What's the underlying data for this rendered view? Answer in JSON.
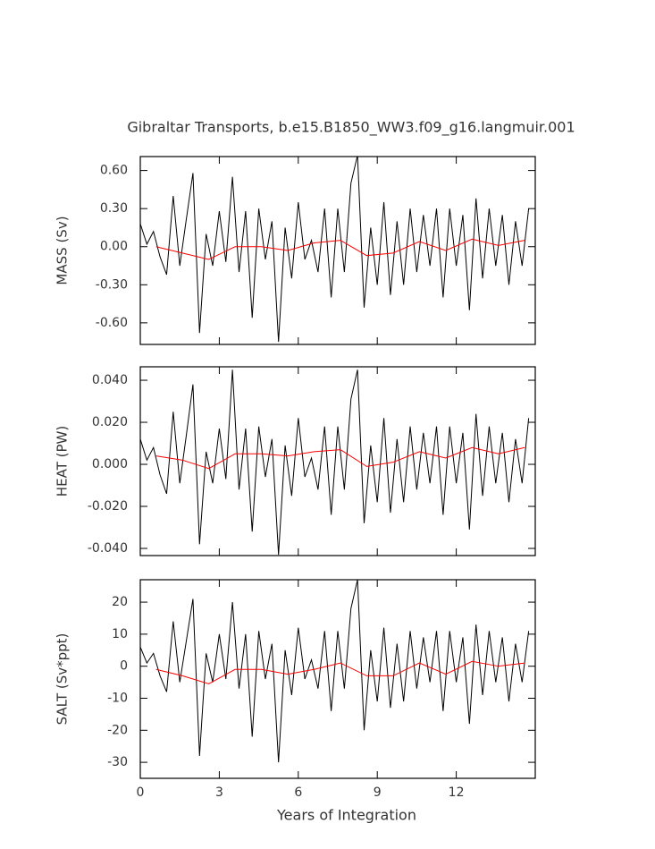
{
  "chart_data": [
    {
      "type": "line",
      "title": "Gibraltar Transports, b.e15.B1850_WW3.f09_g16.langmuir.001",
      "ylabel": "MASS (Sv)",
      "xlim": [
        0,
        15
      ],
      "xticks": [
        0,
        3,
        6,
        9,
        12
      ],
      "ylim": [
        -0.77,
        0.71
      ],
      "yticks": [
        {
          "value": 0.6,
          "label": "0.60"
        },
        {
          "value": 0.3,
          "label": "0.30"
        },
        {
          "value": 0,
          "label": "0.00"
        },
        {
          "value": -0.3,
          "label": "-0.30"
        },
        {
          "value": -0.6,
          "label": "-0.60"
        }
      ],
      "series": [
        {
          "color": "#000000",
          "x": [
            0,
            0.25,
            0.5,
            0.75,
            1,
            1.25,
            1.5,
            1.75,
            2,
            2.25,
            2.5,
            2.75,
            3,
            3.25,
            3.5,
            3.75,
            4,
            4.25,
            4.5,
            4.75,
            5,
            5.25,
            5.5,
            5.75,
            6,
            6.25,
            6.5,
            6.75,
            7,
            7.25,
            7.5,
            7.75,
            8,
            8.25,
            8.5,
            8.75,
            9,
            9.25,
            9.5,
            9.75,
            10,
            10.25,
            10.5,
            10.75,
            11,
            11.25,
            11.5,
            11.75,
            12,
            12.25,
            12.5,
            12.75,
            13,
            13.25,
            13.5,
            13.75,
            14,
            14.25,
            14.5,
            14.75
          ],
          "values": [
            0.18,
            0.02,
            0.12,
            -0.08,
            -0.22,
            0.4,
            -0.15,
            0.22,
            0.58,
            -0.68,
            0.1,
            -0.15,
            0.28,
            -0.12,
            0.55,
            -0.2,
            0.28,
            -0.56,
            0.3,
            -0.1,
            0.2,
            -0.75,
            0.15,
            -0.25,
            0.35,
            -0.1,
            0.05,
            -0.2,
            0.3,
            -0.4,
            0.3,
            -0.2,
            0.5,
            0.72,
            -0.48,
            0.15,
            -0.3,
            0.35,
            -0.38,
            0.2,
            -0.3,
            0.3,
            -0.2,
            0.25,
            -0.15,
            0.3,
            -0.4,
            0.3,
            -0.15,
            0.25,
            -0.5,
            0.38,
            -0.25,
            0.3,
            -0.15,
            0.25,
            -0.3,
            0.2,
            -0.15,
            0.3
          ]
        },
        {
          "color": "#ff0000",
          "x": [
            0.6,
            1.6,
            2.6,
            3.6,
            4.6,
            5.6,
            6.6,
            7.6,
            8.6,
            9.6,
            10.6,
            11.6,
            12.6,
            13.6,
            14.6
          ],
          "values": [
            0.0,
            -0.05,
            -0.1,
            0.0,
            0.0,
            -0.03,
            0.03,
            0.05,
            -0.07,
            -0.05,
            0.04,
            -0.03,
            0.06,
            0.01,
            0.05
          ]
        }
      ]
    },
    {
      "type": "line",
      "ylabel": "HEAT (PW)",
      "xlim": [
        0,
        15
      ],
      "xticks": [
        0,
        3,
        6,
        9,
        12
      ],
      "ylim": [
        -0.0434,
        0.0464
      ],
      "yticks": [
        {
          "value": 0.04,
          "label": "0.040"
        },
        {
          "value": 0.02,
          "label": "0.020"
        },
        {
          "value": 0,
          "label": "0.000"
        },
        {
          "value": -0.02,
          "label": "-0.020"
        },
        {
          "value": -0.04,
          "label": "-0.040"
        }
      ],
      "series": [
        {
          "color": "#000000",
          "x": [
            0,
            0.25,
            0.5,
            0.75,
            1,
            1.25,
            1.5,
            1.75,
            2,
            2.25,
            2.5,
            2.75,
            3,
            3.25,
            3.5,
            3.75,
            4,
            4.25,
            4.5,
            4.75,
            5,
            5.25,
            5.5,
            5.75,
            6,
            6.25,
            6.5,
            6.75,
            7,
            7.25,
            7.5,
            7.75,
            8,
            8.25,
            8.5,
            8.75,
            9,
            9.25,
            9.5,
            9.75,
            10,
            10.25,
            10.5,
            10.75,
            11,
            11.25,
            11.5,
            11.75,
            12,
            12.25,
            12.5,
            12.75,
            13,
            13.25,
            13.5,
            13.75,
            14,
            14.25,
            14.5,
            14.75
          ],
          "values": [
            0.012,
            0.002,
            0.008,
            -0.005,
            -0.014,
            0.025,
            -0.009,
            0.014,
            0.038,
            -0.038,
            0.006,
            -0.009,
            0.017,
            -0.007,
            0.045,
            -0.012,
            0.017,
            -0.032,
            0.018,
            -0.006,
            0.012,
            -0.043,
            0.009,
            -0.015,
            0.022,
            -0.006,
            0.003,
            -0.012,
            0.018,
            -0.024,
            0.018,
            -0.012,
            0.031,
            0.045,
            -0.028,
            0.009,
            -0.018,
            0.022,
            -0.023,
            0.012,
            -0.018,
            0.018,
            -0.012,
            0.015,
            -0.009,
            0.018,
            -0.024,
            0.018,
            -0.009,
            0.015,
            -0.031,
            0.024,
            -0.015,
            0.018,
            -0.009,
            0.015,
            -0.018,
            0.012,
            -0.009,
            0.022
          ]
        },
        {
          "color": "#ff0000",
          "x": [
            0.6,
            1.6,
            2.6,
            3.6,
            4.6,
            5.6,
            6.6,
            7.6,
            8.6,
            9.6,
            10.6,
            11.6,
            12.6,
            13.6,
            14.6
          ],
          "values": [
            0.004,
            0.002,
            -0.002,
            0.005,
            0.005,
            0.004,
            0.006,
            0.007,
            -0.001,
            0.001,
            0.006,
            0.003,
            0.008,
            0.005,
            0.008
          ]
        }
      ]
    },
    {
      "type": "line",
      "ylabel": "SALT (Sv*ppt)",
      "xlabel": "Years of Integration",
      "xlim": [
        0,
        15
      ],
      "xticks": [
        0,
        3,
        6,
        9,
        12
      ],
      "ylim": [
        -35,
        27
      ],
      "yticks": [
        20,
        10,
        0,
        -10,
        -20,
        -30
      ],
      "series": [
        {
          "color": "#000000",
          "x": [
            0,
            0.25,
            0.5,
            0.75,
            1,
            1.25,
            1.5,
            1.75,
            2,
            2.25,
            2.5,
            2.75,
            3,
            3.25,
            3.5,
            3.75,
            4,
            4.25,
            4.5,
            4.75,
            5,
            5.25,
            5.5,
            5.75,
            6,
            6.25,
            6.5,
            6.75,
            7,
            7.25,
            7.5,
            7.75,
            8,
            8.25,
            8.5,
            8.75,
            9,
            9.25,
            9.5,
            9.75,
            10,
            10.25,
            10.5,
            10.75,
            11,
            11.25,
            11.5,
            11.75,
            12,
            12.25,
            12.5,
            12.75,
            13,
            13.25,
            13.5,
            13.75,
            14,
            14.25,
            14.5,
            14.75
          ],
          "values": [
            6,
            1,
            4,
            -3,
            -8,
            14,
            -5,
            8,
            21,
            -28,
            4,
            -5,
            10,
            -4,
            20,
            -7,
            10,
            -22,
            11,
            -4,
            7,
            -30,
            5,
            -9,
            12,
            -4,
            2,
            -7,
            11,
            -14,
            11,
            -7,
            18,
            27,
            -20,
            5,
            -11,
            12,
            -13,
            7,
            -11,
            11,
            -7,
            9,
            -5,
            11,
            -14,
            11,
            -5,
            9,
            -18,
            13,
            -9,
            11,
            -5,
            9,
            -11,
            7,
            -5,
            11
          ]
        },
        {
          "color": "#ff0000",
          "x": [
            0.6,
            1.6,
            2.6,
            3.6,
            4.6,
            5.6,
            6.6,
            7.6,
            8.6,
            9.6,
            10.6,
            11.6,
            12.6,
            13.6,
            14.6
          ],
          "values": [
            -1,
            -3,
            -5.5,
            -1,
            -1,
            -2.5,
            -1,
            1,
            -3,
            -3,
            1,
            -2.5,
            1.5,
            0,
            1
          ]
        }
      ]
    }
  ]
}
